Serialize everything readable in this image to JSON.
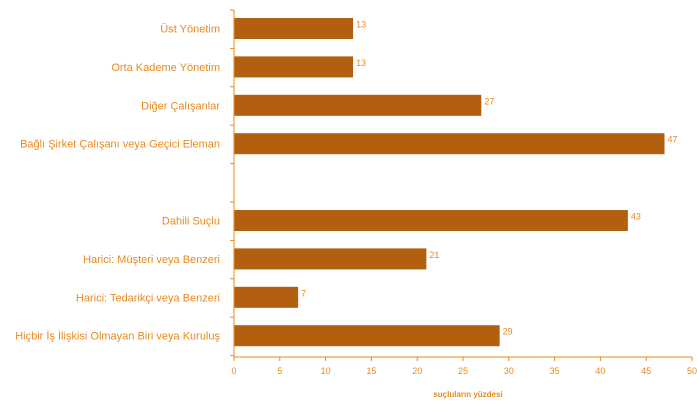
{
  "chart_data": {
    "type": "bar",
    "orientation": "horizontal",
    "categories": [
      "Üst Yönetim",
      "Orta Kademe Yönetim",
      "Diğer Çalışanlar",
      "Bağlı Şirket Çalışanı veya Geçici Eleman",
      "",
      "Dahili Suçlu",
      "Harici: Müşteri veya Benzeri",
      "Harici: Tedarikçi veya Benzeri",
      "Hiçbir İş İlişkisi Olmayan Biri veya Kuruluş"
    ],
    "values": [
      13,
      13,
      27,
      47,
      null,
      43,
      21,
      7,
      29
    ],
    "xlabel": "suçluların yüzdesi",
    "ylabel": "",
    "xlim": [
      0,
      50
    ],
    "xticks": [
      0,
      5,
      10,
      15,
      20,
      25,
      30,
      35,
      40,
      45,
      50
    ],
    "grid": false,
    "colors": {
      "bar": "#b25f0f",
      "text": "#e8891d",
      "axis": "#e8891d"
    }
  }
}
